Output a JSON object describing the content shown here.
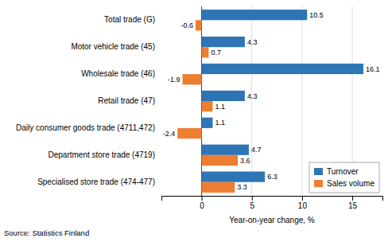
{
  "chart_data": {
    "type": "bar",
    "orientation": "horizontal",
    "categories": [
      "Total trade (G)",
      "Motor vehicle trade (45)",
      "Wholesale trade (46)",
      "Retail trade (47)",
      "Daily consumer goods trade (4711,472)",
      "Department store trade (4719)",
      "Specialised store trade (474-477)"
    ],
    "series": [
      {
        "name": "Turnover",
        "color": "#2E75B6",
        "values": [
          10.5,
          4.3,
          16.1,
          4.3,
          1.1,
          4.7,
          6.3
        ]
      },
      {
        "name": "Sales volume",
        "color": "#ED7D31",
        "values": [
          -0.6,
          0.7,
          -1.9,
          1.1,
          -2.4,
          3.6,
          3.3
        ]
      }
    ],
    "xlabel": "Year-on-year change, %",
    "annotations": [
      "Source: Statistics Finland"
    ],
    "xlim": [
      -4,
      18
    ],
    "xticks": [
      0,
      5,
      10,
      15
    ],
    "grid": true,
    "legend": "lower right",
    "data_labels": true
  }
}
